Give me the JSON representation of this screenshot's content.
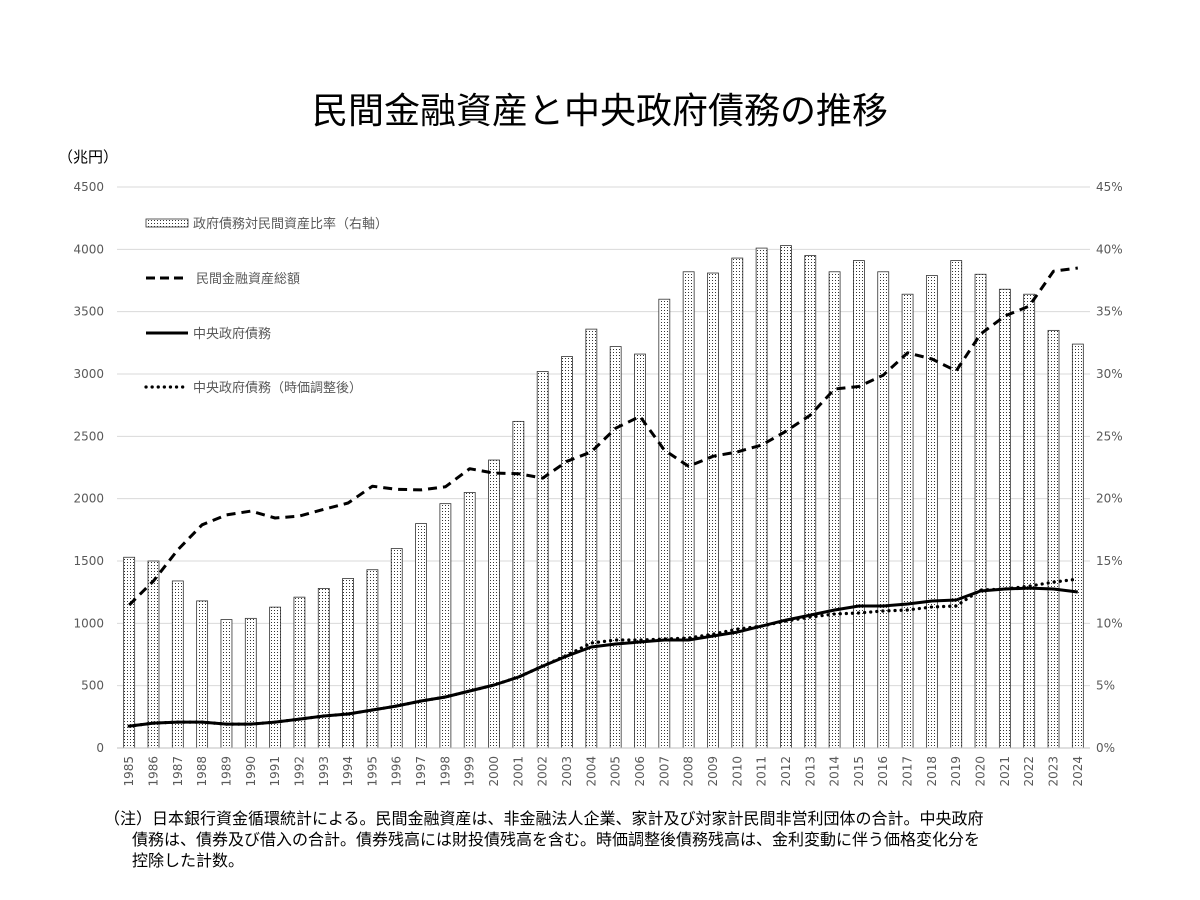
{
  "chart_data": {
    "type": "bar+line",
    "title": "民間金融資産と中央政府債務の推移",
    "ylabel": "（兆円）",
    "ylim": [
      0,
      4500
    ],
    "y2lim": [
      0,
      45
    ],
    "y_ticks": [
      "0",
      "500",
      "1000",
      "1500",
      "2000",
      "2500",
      "3000",
      "3500",
      "4000",
      "4500"
    ],
    "y2_ticks": [
      "0%",
      "5%",
      "10%",
      "15%",
      "20%",
      "25%",
      "30%",
      "35%",
      "40%",
      "45%"
    ],
    "grid": true,
    "legend_position": "top-left",
    "categories": [
      "1985",
      "1986",
      "1987",
      "1988",
      "1989",
      "1990",
      "1991",
      "1992",
      "1993",
      "1994",
      "1995",
      "1996",
      "1997",
      "1998",
      "1999",
      "2000",
      "2001",
      "2002",
      "2003",
      "2004",
      "2005",
      "2006",
      "2007",
      "2008",
      "2009",
      "2010",
      "2011",
      "2012",
      "2013",
      "2014",
      "2015",
      "2016",
      "2017",
      "2018",
      "2019",
      "2020",
      "2021",
      "2022",
      "2023",
      "2024"
    ],
    "series": [
      {
        "name": "政府債務対民間資産比率（右軸）",
        "kind": "bar",
        "axis": "right",
        "unit": "%",
        "values": [
          15.3,
          15.0,
          13.4,
          11.8,
          10.3,
          10.4,
          11.3,
          12.1,
          12.8,
          13.6,
          14.3,
          16.0,
          18.0,
          19.6,
          20.5,
          23.1,
          26.2,
          30.2,
          31.4,
          33.6,
          32.2,
          31.6,
          36.0,
          38.2,
          38.1,
          39.3,
          40.1,
          40.3,
          39.5,
          38.2,
          39.1,
          38.2,
          36.4,
          37.9,
          39.1,
          38.0,
          36.8,
          36.4,
          33.5,
          32.4
        ]
      },
      {
        "name": "民間金融資産総額",
        "kind": "line",
        "style": "dashed",
        "axis": "left",
        "values": [
          1147,
          1340,
          1590,
          1790,
          1870,
          1900,
          1845,
          1860,
          1915,
          1965,
          2100,
          2075,
          2070,
          2095,
          2240,
          2205,
          2200,
          2165,
          2300,
          2375,
          2565,
          2660,
          2390,
          2260,
          2340,
          2375,
          2430,
          2540,
          2670,
          2880,
          2900,
          2990,
          3170,
          3120,
          3025,
          3320,
          3465,
          3545,
          3825,
          3850
        ]
      },
      {
        "name": "中央政府債務",
        "kind": "line",
        "style": "solid",
        "axis": "left",
        "values": [
          176,
          200,
          208,
          208,
          192,
          192,
          208,
          232,
          257,
          273,
          305,
          337,
          377,
          409,
          457,
          505,
          569,
          657,
          738,
          810,
          834,
          850,
          866,
          866,
          898,
          930,
          978,
          1026,
          1066,
          1107,
          1139,
          1139,
          1155,
          1179,
          1187,
          1259,
          1275,
          1283,
          1275,
          1251
        ]
      },
      {
        "name": "中央政府債務（時価調整後）",
        "kind": "line",
        "style": "dotted",
        "axis": "left",
        "values": [
          176,
          200,
          208,
          208,
          192,
          192,
          208,
          232,
          257,
          273,
          305,
          337,
          377,
          409,
          457,
          505,
          569,
          657,
          745,
          842,
          866,
          866,
          874,
          882,
          914,
          954,
          978,
          1018,
          1050,
          1075,
          1083,
          1099,
          1107,
          1131,
          1139,
          1267,
          1275,
          1299,
          1331,
          1355
        ]
      }
    ]
  },
  "note": {
    "line1": "（注）日本銀行資金循環統計による。民間金融資産は、非金融法人企業、家計及び対家計民間非営利団体の合計。中央政府",
    "line2": "債務は、債券及び借入の合計。債券残高には財投債残高を含む。時価調整後債務残高は、金利変動に伴う価格変化分を",
    "line3": "控除した計数。"
  }
}
